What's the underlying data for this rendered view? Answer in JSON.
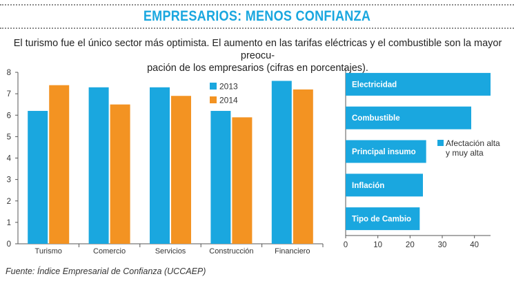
{
  "header": {
    "title": "EMPRESARIOS: MENOS CONFIANZA",
    "subtitle_line1": "El turismo fue el único sector más optimista. El aumento en las tarifas eléctricas y el combustible son la mayor preocu-",
    "subtitle_line2": "pación de los empresarios (cifras en porcentajes)."
  },
  "footer": {
    "source": "Fuente: Índice Empresarial de Confianza (UCCAEP)"
  },
  "colors": {
    "title": "#1aa7df",
    "series_2013": "#1aa7df",
    "series_2014": "#f39322"
  },
  "chart_data": [
    {
      "type": "bar",
      "categories": [
        "Turismo",
        "Comercio",
        "Servicios",
        "Construcción",
        "Financiero"
      ],
      "series": [
        {
          "name": "2013",
          "color": "#1aa7df",
          "values": [
            6.2,
            7.3,
            7.3,
            6.2,
            7.6
          ]
        },
        {
          "name": "2014",
          "color": "#f39322",
          "values": [
            7.4,
            6.5,
            6.9,
            5.9,
            7.2
          ]
        }
      ],
      "ylim": [
        0,
        8
      ],
      "yticks": [
        0,
        1,
        2,
        3,
        4,
        5,
        6,
        7,
        8
      ],
      "legend": "top-right"
    },
    {
      "type": "bar",
      "orientation": "horizontal",
      "categories": [
        "Electricidad",
        "Combustible",
        "Principal insumo",
        "Inflación",
        "Tipo de Cambio"
      ],
      "series": [
        {
          "name": "Afectación alta y muy alta",
          "name_line1": "Afectación alta",
          "name_line2": "y muy alta",
          "color": "#1aa7df",
          "values": [
            45,
            39,
            25,
            24,
            23
          ]
        }
      ],
      "xlim": [
        0,
        45
      ],
      "xticks": [
        0,
        10,
        20,
        30,
        40
      ],
      "legend": "right"
    }
  ]
}
